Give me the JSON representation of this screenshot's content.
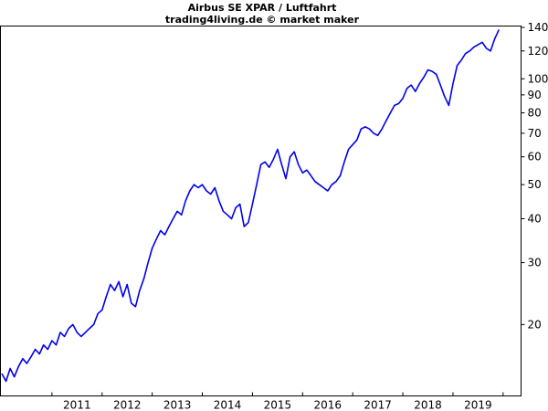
{
  "chart_data": {
    "type": "line",
    "title": "Airbus SE XPAR / Luftfahrt",
    "subtitle": "trading4living.de © market maker",
    "y_scale": "log",
    "ylim": [
      14,
      145
    ],
    "xlim": [
      "2010-01",
      "2020-03"
    ],
    "y_ticks": [
      20,
      30,
      40,
      50,
      60,
      70,
      80,
      90,
      100,
      120,
      140
    ],
    "x_ticks": [
      "2011",
      "2012",
      "2013",
      "2014",
      "2015",
      "2016",
      "2017",
      "2018",
      "2019"
    ],
    "grid": false,
    "series": [
      {
        "color": "#0000ee",
        "x": [
          "2010-01",
          "2010-02",
          "2010-03",
          "2010-04",
          "2010-05",
          "2010-06",
          "2010-07",
          "2010-08",
          "2010-09",
          "2010-10",
          "2010-11",
          "2010-12",
          "2011-01",
          "2011-02",
          "2011-03",
          "2011-04",
          "2011-05",
          "2011-06",
          "2011-07",
          "2011-08",
          "2011-09",
          "2011-10",
          "2011-11",
          "2011-12",
          "2012-01",
          "2012-02",
          "2012-03",
          "2012-04",
          "2012-05",
          "2012-06",
          "2012-07",
          "2012-08",
          "2012-09",
          "2012-10",
          "2012-11",
          "2012-12",
          "2013-01",
          "2013-02",
          "2013-03",
          "2013-04",
          "2013-05",
          "2013-06",
          "2013-07",
          "2013-08",
          "2013-09",
          "2013-10",
          "2013-11",
          "2013-12",
          "2014-01",
          "2014-02",
          "2014-03",
          "2014-04",
          "2014-05",
          "2014-06",
          "2014-07",
          "2014-08",
          "2014-09",
          "2014-10",
          "2014-11",
          "2014-12",
          "2015-01",
          "2015-02",
          "2015-03",
          "2015-04",
          "2015-05",
          "2015-06",
          "2015-07",
          "2015-08",
          "2015-09",
          "2015-10",
          "2015-11",
          "2015-12",
          "2016-01",
          "2016-02",
          "2016-03",
          "2016-04",
          "2016-05",
          "2016-06",
          "2016-07",
          "2016-08",
          "2016-09",
          "2016-10",
          "2016-11",
          "2016-12",
          "2017-01",
          "2017-02",
          "2017-03",
          "2017-04",
          "2017-05",
          "2017-06",
          "2017-07",
          "2017-08",
          "2017-09",
          "2017-10",
          "2017-11",
          "2017-12",
          "2018-01",
          "2018-02",
          "2018-03",
          "2018-04",
          "2018-05",
          "2018-06",
          "2018-07",
          "2018-08",
          "2018-09",
          "2018-10",
          "2018-11",
          "2018-12",
          "2019-01",
          "2019-02",
          "2019-03",
          "2019-04",
          "2019-05",
          "2019-06",
          "2019-07",
          "2019-08",
          "2019-09",
          "2019-10",
          "2019-11",
          "2019-12"
        ],
        "values": [
          14.5,
          13.8,
          15.0,
          14.2,
          15.2,
          16.0,
          15.5,
          16.2,
          17.0,
          16.5,
          17.5,
          17.0,
          18.0,
          17.5,
          19.0,
          18.5,
          19.5,
          20.0,
          19.0,
          18.5,
          19.0,
          19.5,
          20.0,
          21.5,
          22.0,
          24.0,
          26.0,
          25.0,
          26.5,
          24.0,
          26.0,
          23.0,
          22.5,
          25.0,
          27.0,
          30.0,
          33.0,
          35.0,
          37.0,
          36.0,
          38.0,
          40.0,
          42.0,
          41.0,
          45.0,
          48.0,
          50.0,
          49.0,
          50.0,
          48.0,
          47.0,
          49.0,
          45.0,
          42.0,
          41.0,
          40.0,
          43.0,
          44.0,
          38.0,
          39.0,
          44.0,
          50.0,
          57.0,
          58.0,
          56.0,
          59.0,
          63.0,
          57.0,
          52.0,
          60.0,
          62.0,
          57.0,
          54.0,
          55.0,
          53.0,
          51.0,
          50.0,
          49.0,
          48.0,
          50.0,
          51.0,
          53.0,
          58.0,
          63.0,
          65.0,
          67.0,
          72.0,
          73.0,
          72.0,
          70.0,
          69.0,
          72.0,
          76.0,
          80.0,
          84.0,
          85.0,
          88.0,
          94.0,
          96.0,
          92.0,
          97.0,
          101.0,
          106.0,
          105.0,
          103.0,
          96.0,
          89.0,
          84.0,
          97.0,
          109.0,
          113.0,
          118.0,
          120.0,
          123.0,
          125.0,
          127.0,
          122.0,
          120.0,
          130.0,
          138.0
        ]
      }
    ]
  }
}
